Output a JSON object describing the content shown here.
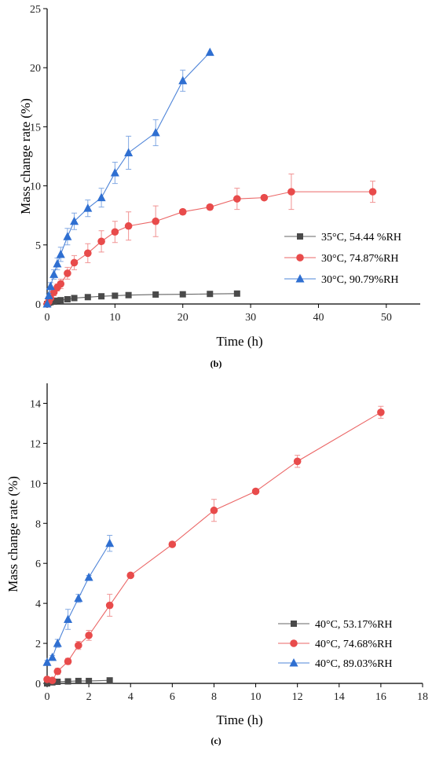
{
  "chart_data": [
    {
      "type": "line",
      "panel_label": "(b)",
      "xlabel": "Time (h)",
      "ylabel": "Mass change rate (%)",
      "xlim": [
        0,
        55
      ],
      "ylim": [
        0,
        25
      ],
      "xticks": [
        0,
        10,
        20,
        30,
        40,
        50
      ],
      "yticks": [
        0,
        5,
        10,
        15,
        20,
        25
      ],
      "grid": false,
      "legend_position": "right",
      "series": [
        {
          "name": "35°C, 54.44 %RH",
          "color": "#4a4a4a",
          "marker": "square",
          "x": [
            0,
            0.25,
            0.5,
            1,
            1.5,
            2,
            3,
            4,
            6,
            8,
            10,
            12,
            16,
            20,
            24,
            28
          ],
          "y": [
            0,
            0.1,
            0.15,
            0.2,
            0.28,
            0.32,
            0.4,
            0.5,
            0.58,
            0.65,
            0.7,
            0.75,
            0.8,
            0.82,
            0.85,
            0.88
          ],
          "err": [
            0,
            0.05,
            0.05,
            0.1,
            0.1,
            0.1,
            0.1,
            0.1,
            0.1,
            0.1,
            0.1,
            0.1,
            0.1,
            0.1,
            0.1,
            0.1
          ]
        },
        {
          "name": "30°C, 74.87%RH",
          "color": "#e84b4b",
          "marker": "circle",
          "x": [
            0,
            0.25,
            0.5,
            1,
            1.5,
            2,
            3,
            4,
            6,
            8,
            10,
            12,
            16,
            20,
            24,
            28,
            32,
            36,
            48
          ],
          "y": [
            0,
            0.2,
            0.5,
            1.0,
            1.4,
            1.7,
            2.6,
            3.5,
            4.3,
            5.3,
            6.1,
            6.6,
            7.0,
            7.8,
            8.2,
            8.9,
            9.0,
            9.5,
            9.5
          ],
          "err": [
            0,
            0.1,
            0.2,
            0.3,
            0.3,
            0.4,
            0.5,
            0.6,
            0.8,
            0.9,
            0.9,
            1.2,
            1.3,
            0.2,
            0.2,
            0.9,
            0.2,
            1.5,
            0.9
          ]
        },
        {
          "name": "30°C, 90.79%RH",
          "color": "#2f6fd1",
          "marker": "triangle",
          "x": [
            0,
            0.25,
            0.5,
            1,
            1.5,
            2,
            3,
            4,
            6,
            8,
            10,
            12,
            16,
            20,
            24
          ],
          "y": [
            0,
            0.7,
            1.5,
            2.5,
            3.4,
            4.2,
            5.7,
            7.0,
            8.1,
            9.0,
            11.1,
            12.8,
            14.5,
            18.9,
            21.3
          ],
          "err": [
            0,
            0.2,
            0.3,
            0.4,
            0.5,
            0.6,
            0.7,
            0.7,
            0.7,
            0.8,
            0.9,
            1.4,
            1.1,
            0.9,
            0
          ]
        }
      ]
    },
    {
      "type": "line",
      "panel_label": "(c)",
      "xlabel": "Time (h)",
      "ylabel": "Mass change rate (%)",
      "xlim": [
        0,
        18
      ],
      "ylim": [
        0,
        15
      ],
      "xticks": [
        0,
        2,
        4,
        6,
        8,
        10,
        12,
        14,
        16,
        18
      ],
      "yticks": [
        0,
        2,
        4,
        6,
        8,
        10,
        12,
        14
      ],
      "grid": false,
      "legend_position": "bottom-right",
      "series": [
        {
          "name": "40°C, 53.17%RH",
          "color": "#4a4a4a",
          "marker": "square",
          "x": [
            0,
            0.25,
            0.5,
            1,
            1.5,
            2,
            3
          ],
          "y": [
            0,
            0.05,
            0.08,
            0.1,
            0.12,
            0.12,
            0.15
          ],
          "err": [
            0,
            0.02,
            0.03,
            0.03,
            0.03,
            0.03,
            0.05
          ]
        },
        {
          "name": "40°C, 74.68%RH",
          "color": "#e84b4b",
          "marker": "circle",
          "x": [
            0,
            0.25,
            0.5,
            1,
            1.5,
            2,
            3,
            4,
            6,
            8,
            10,
            12,
            16
          ],
          "y": [
            0.2,
            0.15,
            0.6,
            1.1,
            1.9,
            2.4,
            3.9,
            5.4,
            6.95,
            8.65,
            9.6,
            11.1,
            13.55
          ],
          "err": [
            0.05,
            0.1,
            0.15,
            0.15,
            0.2,
            0.25,
            0.55,
            0.1,
            0.1,
            0.55,
            0.1,
            0.3,
            0.3
          ]
        },
        {
          "name": "40°C, 89.03%RH",
          "color": "#2f6fd1",
          "marker": "triangle",
          "x": [
            0,
            0.25,
            0.5,
            1,
            1.5,
            2,
            3
          ],
          "y": [
            1.05,
            1.3,
            2.0,
            3.2,
            4.25,
            5.3,
            7.0
          ],
          "err": [
            0.1,
            0.1,
            0.2,
            0.5,
            0.2,
            0.1,
            0.4
          ]
        }
      ]
    }
  ]
}
